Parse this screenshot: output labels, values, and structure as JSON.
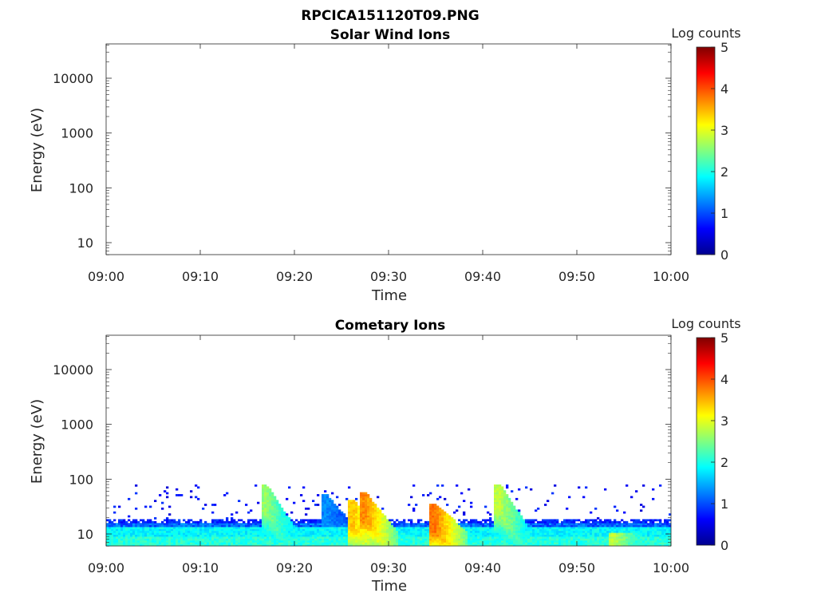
{
  "figure": {
    "title": "RPCICA151120T09.PNG"
  },
  "colorbar": {
    "label": "Log counts",
    "ticks": [
      "0",
      "1",
      "2",
      "3",
      "4",
      "5"
    ],
    "range": [
      0,
      5
    ],
    "colormap": "jet"
  },
  "chart_data": [
    {
      "type": "heatmap",
      "title": "Solar Wind Ions",
      "xlabel": "Time",
      "ylabel": "Energy (eV)",
      "x_ticks": [
        "09:00",
        "09:10",
        "09:20",
        "09:30",
        "09:40",
        "09:50",
        "10:00"
      ],
      "y_ticks": [
        "10",
        "100",
        "1000",
        "10000"
      ],
      "y_scale": "log",
      "ylim": [
        6,
        45000
      ],
      "xlim": [
        "09:00",
        "10:00"
      ],
      "data_present": false
    },
    {
      "type": "heatmap",
      "title": "Cometary Ions",
      "xlabel": "Time",
      "ylabel": "Energy (eV)",
      "x_ticks": [
        "09:00",
        "09:10",
        "09:20",
        "09:30",
        "09:40",
        "09:50",
        "10:00"
      ],
      "y_ticks": [
        "10",
        "100",
        "1000",
        "10000"
      ],
      "y_scale": "log",
      "ylim": [
        6,
        45000
      ],
      "xlim": [
        "09:00",
        "10:00"
      ],
      "data_present": true,
      "background": {
        "energy_range_eV": [
          6,
          18
        ],
        "log_counts": [
          1.8,
          2.2
        ],
        "sparse_counts_up_to_eV": 80
      },
      "events": [
        {
          "time_min": 17.0,
          "peak_energy_eV": 80,
          "peak_log_counts": 2.6
        },
        {
          "time_min": 23.5,
          "peak_energy_eV": 50,
          "peak_log_counts": 1.3
        },
        {
          "time_min": 26.3,
          "peak_energy_eV": 40,
          "peak_log_counts": 3.4
        },
        {
          "time_min": 27.6,
          "peak_energy_eV": 55,
          "peak_log_counts": 3.7
        },
        {
          "time_min": 35.0,
          "peak_energy_eV": 35,
          "peak_log_counts": 3.8
        },
        {
          "time_min": 41.8,
          "peak_energy_eV": 80,
          "peak_log_counts": 2.8
        },
        {
          "time_min": 54.0,
          "peak_energy_eV": 10,
          "peak_log_counts": 2.8
        }
      ]
    }
  ]
}
